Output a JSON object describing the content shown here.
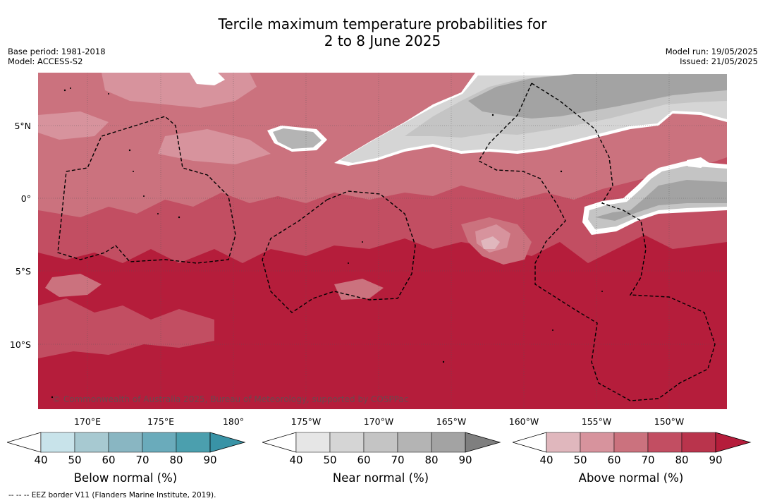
{
  "title_line1": "Tercile maximum temperature probabilities for",
  "title_line2": "2 to 8 June 2025",
  "base_period": "Base period: 1981-2018",
  "model": "Model: ACCESS-S2",
  "model_run": "Model run: 19/05/2025",
  "issued": "Issued: 21/05/2025",
  "copyright": "© Commonwealth of Australia 2025, Bureau of Meteorology, supported by COSPPac",
  "footer": "-- -- -- EEZ border V11 (Flanders Marine Institute, 2019).",
  "lat_labels": [
    "5°N",
    "0°",
    "5°S",
    "10°S"
  ],
  "lon_labels": [
    "170°E",
    "175°E",
    "180°",
    "175°W",
    "170°W",
    "165°W",
    "160°W",
    "155°W",
    "150°W"
  ],
  "colors": {
    "above": [
      "#e0b7bd",
      "#d7939d",
      "#cb727e",
      "#c24e62",
      "#b9344c",
      "#b51d3b"
    ],
    "near": [
      "#e6e6e6",
      "#d5d5d5",
      "#c4c4c4",
      "#b4b4b4",
      "#a3a3a3",
      "#7f7f7f"
    ],
    "below": [
      "#c8e3ea",
      "#a7c9d1",
      "#89b6c2",
      "#6aabbb",
      "#4b9fae",
      "#3993a6"
    ]
  },
  "colorbars": [
    {
      "title": "Below normal (%)",
      "ticks": [
        "40",
        "50",
        "60",
        "70",
        "80",
        "90"
      ]
    },
    {
      "title": "Near normal (%)",
      "ticks": [
        "40",
        "50",
        "60",
        "70",
        "80",
        "90"
      ]
    },
    {
      "title": "Above normal (%)",
      "ticks": [
        "40",
        "50",
        "60",
        "70",
        "80",
        "90"
      ]
    }
  ]
}
